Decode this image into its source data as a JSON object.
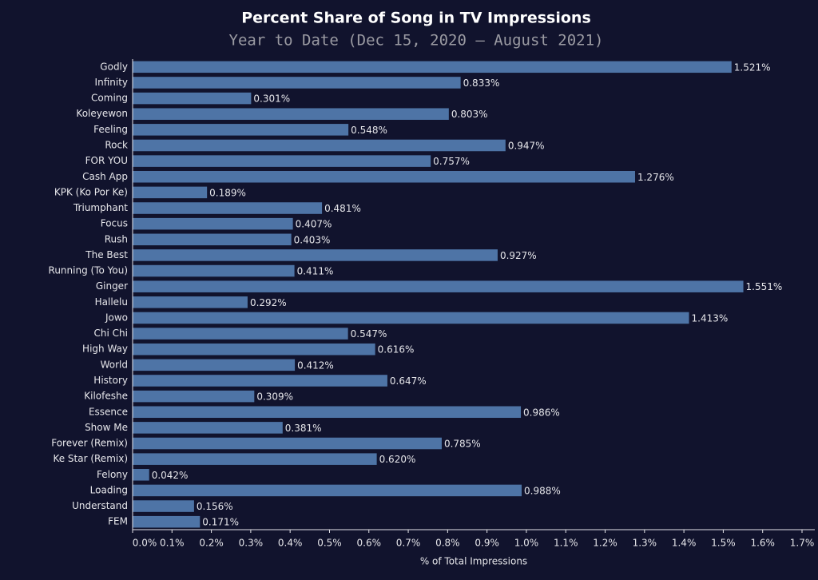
{
  "chart_data": {
    "type": "hbar",
    "title": "Percent Share of Song in TV Impressions",
    "subtitle": "Year to Date (Dec 15, 2020 — August 2021)",
    "x_label": "% of Total Impressions",
    "color": "#4e74a6",
    "categories": [
      "Godly",
      "Infinity",
      "Coming",
      "Koleyewon",
      "Feeling",
      "Rock",
      "FOR YOU",
      "Cash App",
      "KPK (Ko Por Ke)",
      "Triumphant",
      "Focus",
      "Rush",
      "The Best",
      "Running (To You)",
      "Ginger",
      "Hallelu",
      "Jowo",
      "Chi Chi",
      "High Way",
      "World",
      "History",
      "Kilofeshe",
      "Essence",
      "Show Me",
      "Forever (Remix)",
      "Ke Star (Remix)",
      "Felony",
      "Loading",
      "Understand",
      "FEM"
    ],
    "values": [
      1.521,
      0.833,
      0.301,
      0.803,
      0.548,
      0.947,
      0.757,
      1.276,
      0.189,
      0.481,
      0.407,
      0.403,
      0.927,
      0.411,
      1.551,
      0.292,
      1.413,
      0.547,
      0.616,
      0.412,
      0.647,
      0.309,
      0.986,
      0.381,
      0.785,
      0.62,
      0.042,
      0.988,
      0.156,
      0.171
    ],
    "value_labels": [
      "1.521%",
      "0.833%",
      "0.301%",
      "0.803%",
      "0.548%",
      "0.947%",
      "0.757%",
      "1.276%",
      "0.189%",
      "0.481%",
      "0.407%",
      "0.403%",
      "0.927%",
      "0.411%",
      "1.551%",
      "0.292%",
      "1.413%",
      "0.547%",
      "0.616%",
      "0.412%",
      "0.647%",
      "0.309%",
      "0.986%",
      "0.381%",
      "0.785%",
      "0.620%",
      "0.042%",
      "0.988%",
      "0.156%",
      "0.171%"
    ],
    "xlim": [
      0,
      1.7
    ],
    "xticks": [
      {
        "value": 0,
        "label": "0.0%"
      },
      {
        "value": 0.1,
        "label": "0.1%"
      },
      {
        "value": 0.2,
        "label": "0.2%"
      },
      {
        "value": 0.3,
        "label": "0.3%"
      },
      {
        "value": 0.4,
        "label": "0.4%"
      },
      {
        "value": 0.5,
        "label": "0.5%"
      },
      {
        "value": 0.6,
        "label": "0.6%"
      },
      {
        "value": 0.7,
        "label": "0.7%"
      },
      {
        "value": 0.8,
        "label": "0.8%"
      },
      {
        "value": 0.9,
        "label": "0.9%"
      },
      {
        "value": 1.0,
        "label": "1.0%"
      },
      {
        "value": 1.1,
        "label": "1.1%"
      },
      {
        "value": 1.2,
        "label": "1.2%"
      },
      {
        "value": 1.3,
        "label": "1.3%"
      },
      {
        "value": 1.4,
        "label": "1.4%"
      },
      {
        "value": 1.5,
        "label": "1.5%"
      },
      {
        "value": 1.6,
        "label": "1.6%"
      },
      {
        "value": 1.7,
        "label": "1.7%"
      }
    ]
  }
}
